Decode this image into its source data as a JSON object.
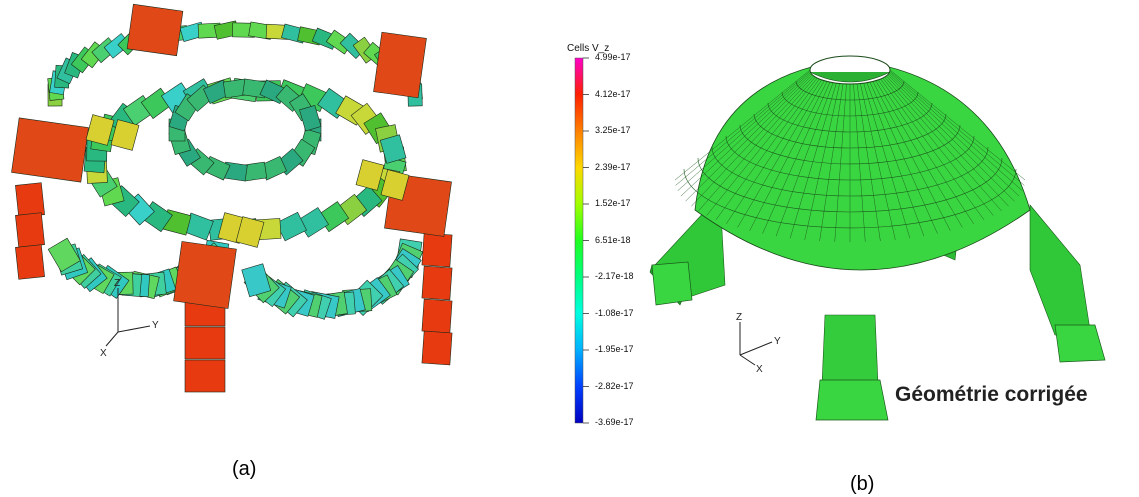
{
  "captions": {
    "a": "(a)",
    "b": "(b)"
  },
  "colorbar": {
    "title": "Cells V_z",
    "ticks": [
      "4.99e-17",
      "4.12e-17",
      "3.25e-17",
      "2.39e-17",
      "1.52e-17",
      "6.51e-18",
      "-2.17e-18",
      "-1.08e-17",
      "-1.95e-17",
      "-2.82e-17",
      "-3.69e-17"
    ],
    "colors": [
      "#ff00c8",
      "#ff2000",
      "#ff8000",
      "#ffd800",
      "#a0ff00",
      "#20ff20",
      "#00ff80",
      "#00ffe0",
      "#00b0ff",
      "#0040ff",
      "#0000c0"
    ]
  },
  "axes": {
    "z": "Z",
    "y": "Y",
    "x": "X"
  },
  "panel_b_label": "Géométrie corrigée",
  "colors": {
    "hot": "#e83a10",
    "warm": "#d8d030",
    "mid": "#40c860",
    "cool": "#30d0c8",
    "dome": "#38d040",
    "dome_dark": "#1e9a28",
    "edge": "#1a3a1a"
  }
}
